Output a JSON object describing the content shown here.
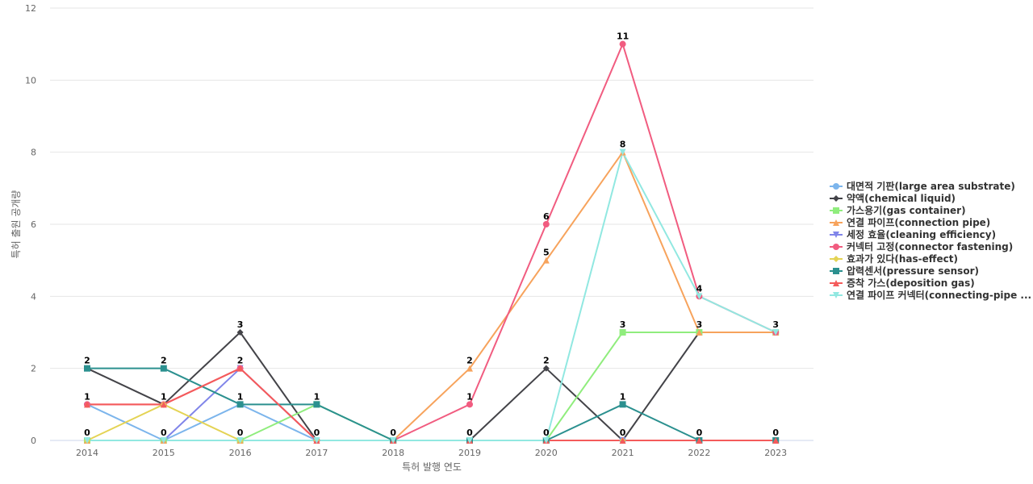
{
  "chart_data": {
    "type": "line",
    "title": "",
    "xlabel": "특허 발행 연도",
    "ylabel": "특허 출원 공개량",
    "ylim": [
      0,
      12
    ],
    "yticks": [
      0,
      2,
      4,
      6,
      8,
      10,
      12
    ],
    "grid": true,
    "legend_position": "right",
    "categories": [
      "2014",
      "2015",
      "2016",
      "2017",
      "2018",
      "2019",
      "2020",
      "2021",
      "2022",
      "2023"
    ],
    "series": [
      {
        "name": "대면적 기판(large area substrate)",
        "color": "#7cb5ec",
        "marker": "circle",
        "values": [
          1,
          0,
          1,
          0,
          0,
          0,
          0,
          0,
          0,
          0
        ]
      },
      {
        "name": "약액(chemical liquid)",
        "color": "#434348",
        "marker": "diamond",
        "values": [
          2,
          1,
          3,
          0,
          0,
          0,
          2,
          0,
          3,
          3
        ]
      },
      {
        "name": "가스용기(gas container)",
        "color": "#90ed7d",
        "marker": "square",
        "values": [
          0,
          0,
          0,
          1,
          0,
          0,
          0,
          3,
          3,
          3
        ]
      },
      {
        "name": "연결 파이프(connection pipe)",
        "color": "#f7a35c",
        "marker": "triangle",
        "values": [
          0,
          0,
          0,
          0,
          0,
          2,
          5,
          8,
          3,
          3
        ]
      },
      {
        "name": "세정 효율(cleaning efficiency)",
        "color": "#8085e9",
        "marker": "triangle-down",
        "values": [
          0,
          0,
          2,
          0,
          0,
          0,
          0,
          0,
          0,
          0
        ]
      },
      {
        "name": "커넥터 고정(connector fastening)",
        "color": "#f15c80",
        "marker": "circle",
        "values": [
          1,
          1,
          2,
          0,
          0,
          1,
          6,
          11,
          4,
          3
        ]
      },
      {
        "name": "효과가 있다(has-effect)",
        "color": "#e4d354",
        "marker": "diamond",
        "values": [
          0,
          1,
          0,
          0,
          0,
          0,
          0,
          0,
          0,
          0
        ]
      },
      {
        "name": "압력센서(pressure sensor)",
        "color": "#2b908f",
        "marker": "square",
        "values": [
          2,
          2,
          1,
          1,
          0,
          0,
          0,
          1,
          0,
          0
        ]
      },
      {
        "name": "증착 가스(deposition gas)",
        "color": "#f45b5b",
        "marker": "triangle",
        "values": [
          1,
          1,
          2,
          0,
          0,
          0,
          0,
          0,
          0,
          0
        ]
      },
      {
        "name": "연결 파이프 커넥터(connecting-pipe ...",
        "color": "#91e8e1",
        "marker": "triangle-down",
        "values": [
          0,
          0,
          0,
          0,
          0,
          0,
          0,
          8,
          4,
          3
        ]
      }
    ],
    "data_labels": [
      {
        "x": "2014",
        "text": "2",
        "y": 2
      },
      {
        "x": "2014",
        "text": "1",
        "y": 1
      },
      {
        "x": "2014",
        "text": "0",
        "y": 0
      },
      {
        "x": "2015",
        "text": "2",
        "y": 2
      },
      {
        "x": "2015",
        "text": "1",
        "y": 1
      },
      {
        "x": "2015",
        "text": "0",
        "y": 0
      },
      {
        "x": "2016",
        "text": "3",
        "y": 3
      },
      {
        "x": "2016",
        "text": "2",
        "y": 2
      },
      {
        "x": "2016",
        "text": "1",
        "y": 1
      },
      {
        "x": "2016",
        "text": "0",
        "y": 0
      },
      {
        "x": "2017",
        "text": "1",
        "y": 1
      },
      {
        "x": "2017",
        "text": "0",
        "y": 0
      },
      {
        "x": "2018",
        "text": "0",
        "y": 0
      },
      {
        "x": "2019",
        "text": "2",
        "y": 2
      },
      {
        "x": "2019",
        "text": "1",
        "y": 1
      },
      {
        "x": "2019",
        "text": "0",
        "y": 0
      },
      {
        "x": "2020",
        "text": "6",
        "y": 6
      },
      {
        "x": "2020",
        "text": "5",
        "y": 5
      },
      {
        "x": "2020",
        "text": "2",
        "y": 2
      },
      {
        "x": "2020",
        "text": "0",
        "y": 0
      },
      {
        "x": "2021",
        "text": "11",
        "y": 11
      },
      {
        "x": "2021",
        "text": "8",
        "y": 8
      },
      {
        "x": "2021",
        "text": "3",
        "y": 3
      },
      {
        "x": "2021",
        "text": "1",
        "y": 1
      },
      {
        "x": "2021",
        "text": "0",
        "y": 0
      },
      {
        "x": "2022",
        "text": "4",
        "y": 4
      },
      {
        "x": "2022",
        "text": "3",
        "y": 3
      },
      {
        "x": "2022",
        "text": "0",
        "y": 0
      },
      {
        "x": "2023",
        "text": "3",
        "y": 3
      },
      {
        "x": "2023",
        "text": "0",
        "y": 0
      }
    ]
  }
}
